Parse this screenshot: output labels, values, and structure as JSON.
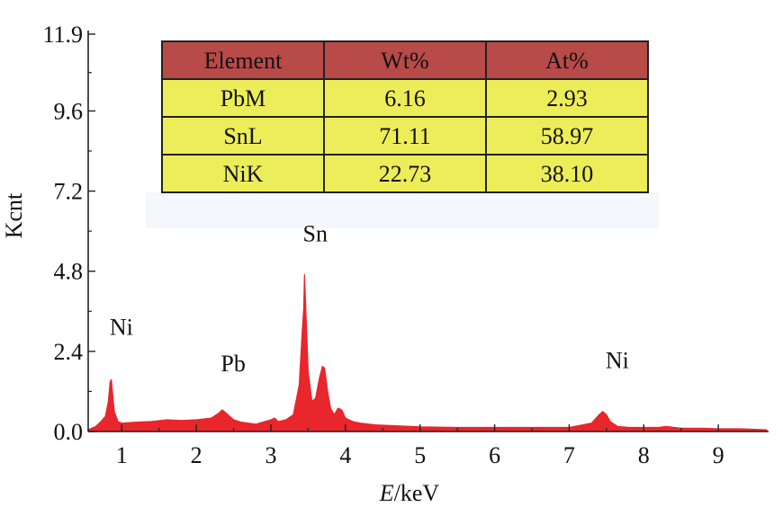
{
  "chart_data": {
    "type": "line",
    "xlabel": "E/keV",
    "xlabel_italic_part": "E",
    "xlabel_rest": "/keV",
    "ylabel": "Kcnt",
    "xlim": [
      0.55,
      9.65
    ],
    "ylim": [
      0,
      11.9
    ],
    "x_ticks": [
      1,
      2,
      3,
      4,
      5,
      6,
      7,
      8,
      9
    ],
    "x_tick_labels": [
      "1",
      "2",
      "3",
      "4",
      "5",
      "6",
      "7",
      "8",
      "9"
    ],
    "y_ticks": [
      0.0,
      2.4,
      4.8,
      7.2,
      9.6,
      11.9
    ],
    "y_tick_labels": [
      "0.0",
      "2.4",
      "4.8",
      "7.2",
      "9.6",
      "11.9"
    ],
    "series": [
      {
        "color": "#e8262b",
        "x": [
          0.55,
          0.65,
          0.72,
          0.78,
          0.82,
          0.845,
          0.86,
          0.875,
          0.9,
          0.95,
          1.0,
          1.2,
          1.4,
          1.6,
          1.8,
          2.0,
          2.2,
          2.3,
          2.35,
          2.4,
          2.5,
          2.6,
          2.8,
          3.0,
          3.05,
          3.1,
          3.2,
          3.3,
          3.38,
          3.42,
          3.44,
          3.45,
          3.47,
          3.5,
          3.55,
          3.6,
          3.65,
          3.69,
          3.72,
          3.76,
          3.8,
          3.85,
          3.9,
          3.95,
          4.0,
          4.05,
          4.1,
          4.2,
          4.4,
          4.6,
          4.8,
          5.0,
          5.5,
          6.0,
          6.5,
          7.0,
          7.3,
          7.4,
          7.45,
          7.5,
          7.55,
          7.65,
          7.8,
          8.0,
          8.2,
          8.3,
          8.5,
          8.8,
          9.0,
          9.3,
          9.65
        ],
        "y": [
          0.05,
          0.15,
          0.3,
          0.45,
          0.9,
          1.5,
          1.55,
          1.2,
          0.6,
          0.3,
          0.25,
          0.28,
          0.3,
          0.35,
          0.33,
          0.35,
          0.4,
          0.55,
          0.65,
          0.55,
          0.35,
          0.28,
          0.22,
          0.35,
          0.4,
          0.3,
          0.35,
          0.5,
          1.4,
          3.0,
          3.7,
          4.7,
          3.6,
          1.8,
          0.9,
          1.0,
          1.6,
          1.95,
          1.9,
          1.2,
          0.7,
          0.5,
          0.7,
          0.65,
          0.4,
          0.35,
          0.3,
          0.25,
          0.2,
          0.18,
          0.16,
          0.14,
          0.12,
          0.12,
          0.12,
          0.12,
          0.25,
          0.5,
          0.6,
          0.5,
          0.3,
          0.15,
          0.12,
          0.12,
          0.12,
          0.15,
          0.1,
          0.1,
          0.08,
          0.08,
          0.05
        ]
      }
    ],
    "annotations": [
      {
        "text": "Ni",
        "x": 0.85,
        "y": 2.9
      },
      {
        "text": "Pb",
        "x": 2.35,
        "y": 1.8
      },
      {
        "text": "Sn",
        "x": 3.45,
        "y": 5.7
      },
      {
        "text": "Ni",
        "x": 7.5,
        "y": 1.9
      }
    ],
    "table": {
      "header": [
        "Element",
        "Wt%",
        "At%"
      ],
      "rows": [
        [
          "PbM",
          "6.16",
          "2.93"
        ],
        [
          "SnL",
          "71.11",
          "58.97"
        ],
        [
          "NiK",
          "22.73",
          "38.10"
        ]
      ],
      "header_color": "#b84a48",
      "row_color": "#eded5a"
    }
  }
}
